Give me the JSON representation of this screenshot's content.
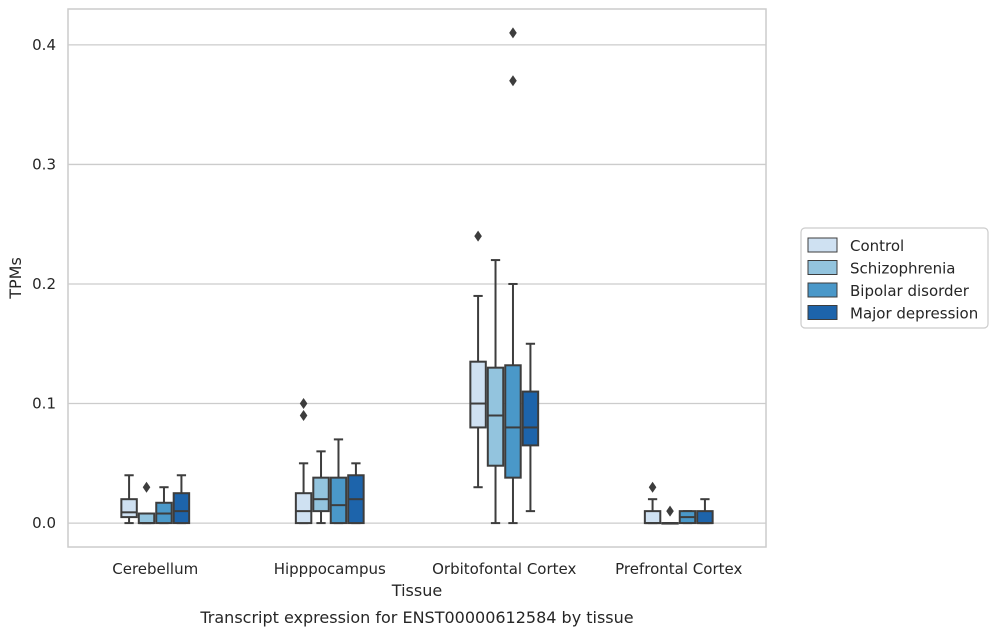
{
  "chart_data": {
    "type": "box",
    "xlabel": "Tissue",
    "ylabel": "TPMs",
    "caption": "Transcript expression for ENST00000612584 by tissue",
    "ylim": [
      -0.02,
      0.43
    ],
    "yticks": [
      0.0,
      0.1,
      0.2,
      0.3,
      0.4
    ],
    "ytick_labels": [
      "0.0",
      "0.1",
      "0.2",
      "0.3",
      "0.4"
    ],
    "grid": "horizontal",
    "legend_position": "right, outside plot",
    "categories": [
      "Cerebellum",
      "Hipppocampus",
      "Orbitofontal Cortex",
      "Prefrontal Cortex"
    ],
    "series": [
      {
        "name": "Control",
        "color": "#cfe1f2",
        "boxes": [
          {
            "whisker_low": 0.0,
            "q1": 0.005,
            "median": 0.009,
            "q3": 0.02,
            "whisker_high": 0.04,
            "outliers": []
          },
          {
            "whisker_low": 0.0,
            "q1": 0.0,
            "median": 0.01,
            "q3": 0.025,
            "whisker_high": 0.05,
            "outliers": [
              0.09,
              0.1
            ]
          },
          {
            "whisker_low": 0.03,
            "q1": 0.08,
            "median": 0.1,
            "q3": 0.135,
            "whisker_high": 0.19,
            "outliers": [
              0.24
            ]
          },
          {
            "whisker_low": 0.0,
            "q1": 0.0,
            "median": 0.0,
            "q3": 0.01,
            "whisker_high": 0.02,
            "outliers": [
              0.03
            ]
          }
        ]
      },
      {
        "name": "Schizophrenia",
        "color": "#93c4de",
        "boxes": [
          {
            "whisker_low": 0.0,
            "q1": 0.0,
            "median": 0.0,
            "q3": 0.008,
            "whisker_high": 0.008,
            "outliers": [
              0.03
            ]
          },
          {
            "whisker_low": 0.0,
            "q1": 0.01,
            "median": 0.02,
            "q3": 0.038,
            "whisker_high": 0.06,
            "outliers": []
          },
          {
            "whisker_low": 0.0,
            "q1": 0.048,
            "median": 0.09,
            "q3": 0.13,
            "whisker_high": 0.22,
            "outliers": []
          },
          {
            "whisker_low": 0.0,
            "q1": 0.0,
            "median": 0.0,
            "q3": 0.0,
            "whisker_high": 0.0,
            "outliers": [
              0.01
            ]
          }
        ]
      },
      {
        "name": "Bipolar disorder",
        "color": "#4a98c9",
        "boxes": [
          {
            "whisker_low": 0.0,
            "q1": 0.0,
            "median": 0.008,
            "q3": 0.017,
            "whisker_high": 0.03,
            "outliers": []
          },
          {
            "whisker_low": 0.0,
            "q1": 0.0,
            "median": 0.015,
            "q3": 0.038,
            "whisker_high": 0.07,
            "outliers": []
          },
          {
            "whisker_low": 0.0,
            "q1": 0.038,
            "median": 0.08,
            "q3": 0.132,
            "whisker_high": 0.2,
            "outliers": [
              0.37,
              0.41
            ]
          },
          {
            "whisker_low": 0.0,
            "q1": 0.0,
            "median": 0.005,
            "q3": 0.01,
            "whisker_high": 0.01,
            "outliers": []
          }
        ]
      },
      {
        "name": "Major depression",
        "color": "#1d64ab",
        "boxes": [
          {
            "whisker_low": 0.0,
            "q1": 0.0,
            "median": 0.01,
            "q3": 0.025,
            "whisker_high": 0.04,
            "outliers": []
          },
          {
            "whisker_low": 0.0,
            "q1": 0.0,
            "median": 0.02,
            "q3": 0.04,
            "whisker_high": 0.05,
            "outliers": []
          },
          {
            "whisker_low": 0.01,
            "q1": 0.065,
            "median": 0.08,
            "q3": 0.11,
            "whisker_high": 0.15,
            "outliers": []
          },
          {
            "whisker_low": 0.0,
            "q1": 0.0,
            "median": 0.0,
            "q3": 0.01,
            "whisker_high": 0.02,
            "outliers": []
          }
        ]
      }
    ]
  },
  "style": {
    "line_color": "#3d3d3d",
    "grid_color": "#cccccc",
    "frame_color": "#cccccc",
    "legend_frame_color": "#cccccc"
  }
}
